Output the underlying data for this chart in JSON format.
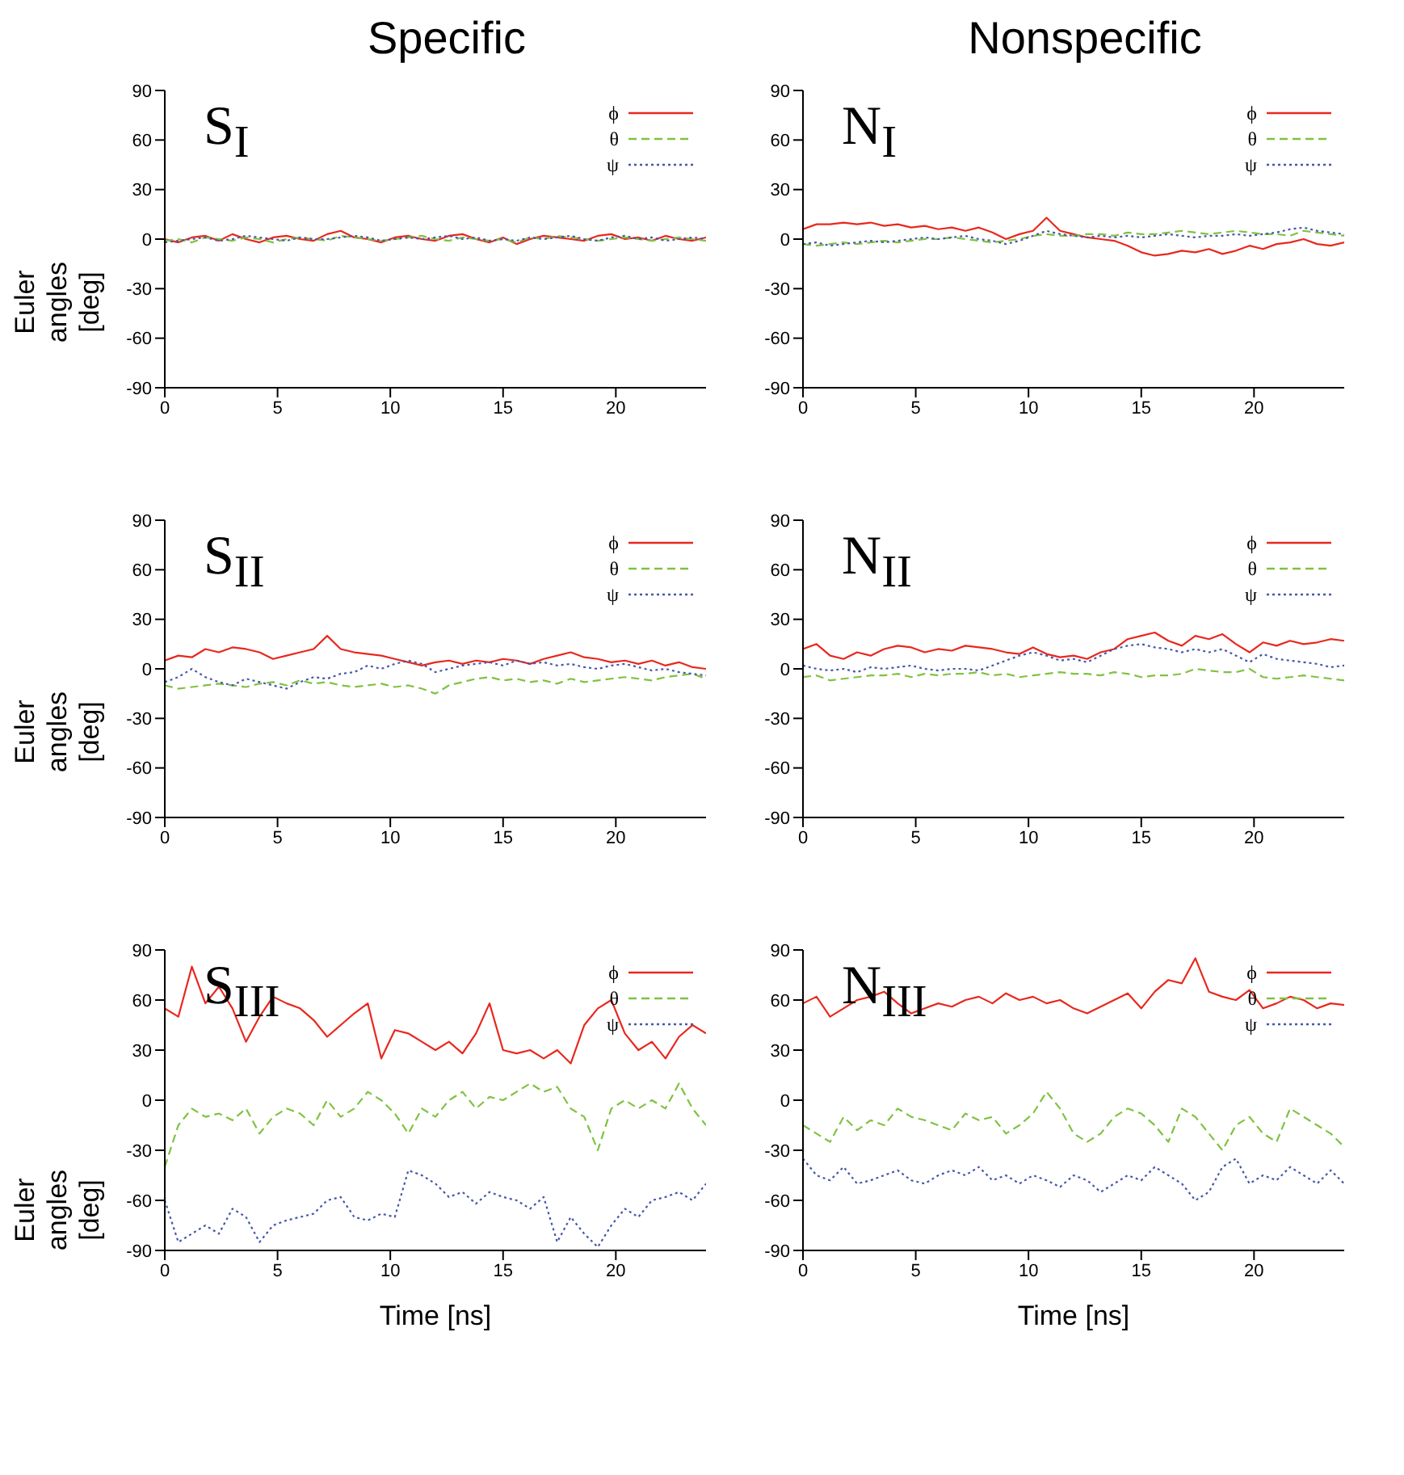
{
  "chart_data": [
    {
      "type": "line",
      "title": "Specific",
      "ylabel": "Euler angles [deg]",
      "annotations": [
        "S$_{I}$"
      ],
      "legend": "top right",
      "xlim": [
        0,
        24
      ],
      "xticks": [
        0,
        5,
        10,
        15,
        20
      ],
      "ylim": [
        -90,
        90
      ],
      "yticks": [
        -90,
        -60,
        -30,
        0,
        30,
        60,
        90
      ],
      "x": [
        0,
        0.6,
        1.2,
        1.8,
        2.4,
        3,
        3.6,
        4.2,
        4.8,
        5.4,
        6,
        6.6,
        7.2,
        7.8,
        8.4,
        9,
        9.6,
        10.2,
        10.8,
        11.4,
        12,
        12.6,
        13.2,
        13.8,
        14.4,
        15,
        15.6,
        16.2,
        16.8,
        17.4,
        18,
        18.6,
        19.2,
        19.8,
        20.4,
        21,
        21.6,
        22.2,
        22.8,
        23.4,
        24
      ],
      "series": [
        {
          "name": "ϕ",
          "color": "#e8281e",
          "line_style": "solid",
          "values": [
            0,
            -2,
            1,
            2,
            -1,
            3,
            0,
            -2,
            1,
            2,
            0,
            -1,
            3,
            5,
            1,
            0,
            -2,
            1,
            2,
            0,
            -1,
            2,
            3,
            0,
            -2,
            1,
            -3,
            0,
            2,
            1,
            0,
            -1,
            2,
            3,
            0,
            1,
            -1,
            2,
            0,
            -1,
            1
          ]
        },
        {
          "name": "θ",
          "color": "#7fc241",
          "line_style": "dashed",
          "values": [
            -1,
            0,
            -2,
            1,
            0,
            -1,
            1,
            0,
            -2,
            0,
            1,
            0,
            -1,
            2,
            1,
            0,
            -1,
            0,
            1,
            2,
            0,
            -1,
            1,
            0,
            -1,
            0,
            -2,
            1,
            0,
            2,
            1,
            0,
            -1,
            0,
            1,
            0,
            -1,
            0,
            1,
            0,
            -1
          ]
        },
        {
          "name": "ψ",
          "color": "#4658a8",
          "line_style": "dotted",
          "values": [
            -2,
            -1,
            0,
            1,
            -1,
            0,
            2,
            1,
            0,
            -1,
            1,
            0,
            0,
            1,
            2,
            1,
            -1,
            0,
            1,
            0,
            1,
            2,
            0,
            1,
            -1,
            0,
            -1,
            1,
            0,
            1,
            2,
            0,
            -1,
            1,
            2,
            0,
            1,
            -1,
            0,
            1,
            0
          ]
        }
      ]
    },
    {
      "type": "line",
      "title": "Nonspecific",
      "annotations": [
        "N$_{I}$"
      ],
      "legend": "top right",
      "xlim": [
        0,
        24
      ],
      "xticks": [
        0,
        5,
        10,
        15,
        20
      ],
      "ylim": [
        -90,
        90
      ],
      "yticks": [
        -90,
        -60,
        -30,
        0,
        30,
        60,
        90
      ],
      "x": [
        0,
        0.6,
        1.2,
        1.8,
        2.4,
        3,
        3.6,
        4.2,
        4.8,
        5.4,
        6,
        6.6,
        7.2,
        7.8,
        8.4,
        9,
        9.6,
        10.2,
        10.8,
        11.4,
        12,
        12.6,
        13.2,
        13.8,
        14.4,
        15,
        15.6,
        16.2,
        16.8,
        17.4,
        18,
        18.6,
        19.2,
        19.8,
        20.4,
        21,
        21.6,
        22.2,
        22.8,
        23.4,
        24
      ],
      "series": [
        {
          "name": "ϕ",
          "color": "#e8281e",
          "line_style": "solid",
          "values": [
            6,
            9,
            9,
            10,
            9,
            10,
            8,
            9,
            7,
            8,
            6,
            7,
            5,
            7,
            4,
            0,
            3,
            5,
            13,
            5,
            3,
            1,
            0,
            -1,
            -4,
            -8,
            -10,
            -9,
            -7,
            -8,
            -6,
            -9,
            -7,
            -4,
            -6,
            -3,
            -2,
            0,
            -3,
            -4,
            -2
          ]
        },
        {
          "name": "θ",
          "color": "#7fc241",
          "line_style": "dashed",
          "values": [
            -3,
            -4,
            -3,
            -2,
            -3,
            -2,
            -1,
            -2,
            -1,
            0,
            0,
            1,
            0,
            -1,
            -2,
            -1,
            0,
            2,
            3,
            2,
            2,
            3,
            3,
            2,
            4,
            3,
            3,
            4,
            5,
            4,
            3,
            4,
            5,
            4,
            3,
            3,
            2,
            5,
            4,
            3,
            2
          ]
        },
        {
          "name": "ψ",
          "color": "#4658a8",
          "line_style": "dotted",
          "values": [
            -3,
            -2,
            -4,
            -3,
            -2,
            -1,
            -2,
            -1,
            0,
            1,
            0,
            1,
            2,
            0,
            -1,
            -3,
            -1,
            2,
            5,
            3,
            2,
            1,
            2,
            1,
            2,
            1,
            2,
            3,
            2,
            1,
            2,
            2,
            3,
            2,
            3,
            4,
            6,
            7,
            5,
            4,
            3
          ]
        }
      ]
    },
    {
      "type": "line",
      "ylabel": "Euler angles [deg]",
      "annotations": [
        "S$_{II}$"
      ],
      "legend": "top right",
      "xlim": [
        0,
        24
      ],
      "xticks": [
        0,
        5,
        10,
        15,
        20
      ],
      "ylim": [
        -90,
        90
      ],
      "yticks": [
        -90,
        -60,
        -30,
        0,
        30,
        60,
        90
      ],
      "x": [
        0,
        0.6,
        1.2,
        1.8,
        2.4,
        3,
        3.6,
        4.2,
        4.8,
        5.4,
        6,
        6.6,
        7.2,
        7.8,
        8.4,
        9,
        9.6,
        10.2,
        10.8,
        11.4,
        12,
        12.6,
        13.2,
        13.8,
        14.4,
        15,
        15.6,
        16.2,
        16.8,
        17.4,
        18,
        18.6,
        19.2,
        19.8,
        20.4,
        21,
        21.6,
        22.2,
        22.8,
        23.4,
        24
      ],
      "series": [
        {
          "name": "ϕ",
          "color": "#e8281e",
          "line_style": "solid",
          "values": [
            5,
            8,
            7,
            12,
            10,
            13,
            12,
            10,
            6,
            8,
            10,
            12,
            20,
            12,
            10,
            9,
            8,
            6,
            4,
            2,
            4,
            5,
            3,
            5,
            4,
            6,
            5,
            3,
            6,
            8,
            10,
            7,
            6,
            4,
            5,
            3,
            5,
            2,
            4,
            1,
            0
          ]
        },
        {
          "name": "θ",
          "color": "#7fc241",
          "line_style": "dashed",
          "values": [
            -10,
            -12,
            -11,
            -10,
            -9,
            -10,
            -11,
            -9,
            -8,
            -10,
            -7,
            -9,
            -8,
            -10,
            -11,
            -10,
            -9,
            -11,
            -10,
            -12,
            -15,
            -10,
            -8,
            -6,
            -5,
            -7,
            -6,
            -8,
            -7,
            -9,
            -6,
            -8,
            -7,
            -6,
            -5,
            -6,
            -7,
            -5,
            -4,
            -3,
            -6
          ]
        },
        {
          "name": "ψ",
          "color": "#4658a8",
          "line_style": "dotted",
          "values": [
            -8,
            -5,
            0,
            -5,
            -8,
            -10,
            -6,
            -8,
            -10,
            -12,
            -8,
            -5,
            -6,
            -3,
            -2,
            2,
            0,
            3,
            5,
            3,
            -2,
            0,
            2,
            3,
            4,
            2,
            5,
            3,
            4,
            2,
            3,
            1,
            0,
            2,
            3,
            1,
            -1,
            0,
            -2,
            -3,
            -4
          ]
        }
      ]
    },
    {
      "type": "line",
      "annotations": [
        "N$_{II}$"
      ],
      "legend": "top right",
      "xlim": [
        0,
        24
      ],
      "xticks": [
        0,
        5,
        10,
        15,
        20
      ],
      "ylim": [
        -90,
        90
      ],
      "yticks": [
        -90,
        -60,
        -30,
        0,
        30,
        60,
        90
      ],
      "x": [
        0,
        0.6,
        1.2,
        1.8,
        2.4,
        3,
        3.6,
        4.2,
        4.8,
        5.4,
        6,
        6.6,
        7.2,
        7.8,
        8.4,
        9,
        9.6,
        10.2,
        10.8,
        11.4,
        12,
        12.6,
        13.2,
        13.8,
        14.4,
        15,
        15.6,
        16.2,
        16.8,
        17.4,
        18,
        18.6,
        19.2,
        19.8,
        20.4,
        21,
        21.6,
        22.2,
        22.8,
        23.4,
        24
      ],
      "series": [
        {
          "name": "ϕ",
          "color": "#e8281e",
          "line_style": "solid",
          "values": [
            12,
            15,
            8,
            6,
            10,
            8,
            12,
            14,
            13,
            10,
            12,
            11,
            14,
            13,
            12,
            10,
            9,
            13,
            9,
            7,
            8,
            6,
            10,
            12,
            18,
            20,
            22,
            17,
            14,
            20,
            18,
            21,
            15,
            10,
            16,
            14,
            17,
            15,
            16,
            18,
            17
          ]
        },
        {
          "name": "θ",
          "color": "#7fc241",
          "line_style": "dashed",
          "values": [
            -5,
            -4,
            -7,
            -6,
            -5,
            -4,
            -4,
            -3,
            -5,
            -3,
            -4,
            -3,
            -3,
            -2,
            -4,
            -3,
            -5,
            -4,
            -3,
            -2,
            -3,
            -3,
            -4,
            -2,
            -3,
            -5,
            -4,
            -4,
            -3,
            0,
            -1,
            -2,
            -2,
            0,
            -5,
            -6,
            -5,
            -4,
            -5,
            -6,
            -7
          ]
        },
        {
          "name": "ψ",
          "color": "#4658a8",
          "line_style": "dotted",
          "values": [
            2,
            0,
            -1,
            0,
            -2,
            1,
            0,
            1,
            2,
            0,
            -1,
            0,
            0,
            -1,
            2,
            5,
            8,
            10,
            8,
            5,
            6,
            4,
            8,
            12,
            14,
            15,
            13,
            12,
            10,
            12,
            10,
            12,
            8,
            4,
            9,
            6,
            5,
            4,
            3,
            1,
            2
          ]
        }
      ]
    },
    {
      "type": "line",
      "ylabel": "Euler angles [deg]",
      "xlabel": "Time [ns]",
      "annotations": [
        "S$_{III}$"
      ],
      "legend": "top right",
      "xlim": [
        0,
        24
      ],
      "xticks": [
        0,
        5,
        10,
        15,
        20
      ],
      "ylim": [
        -90,
        90
      ],
      "yticks": [
        -90,
        -60,
        -30,
        0,
        30,
        60,
        90
      ],
      "x": [
        0,
        0.6,
        1.2,
        1.8,
        2.4,
        3,
        3.6,
        4.2,
        4.8,
        5.4,
        6,
        6.6,
        7.2,
        7.8,
        8.4,
        9,
        9.6,
        10.2,
        10.8,
        11.4,
        12,
        12.6,
        13.2,
        13.8,
        14.4,
        15,
        15.6,
        16.2,
        16.8,
        17.4,
        18,
        18.6,
        19.2,
        19.8,
        20.4,
        21,
        21.6,
        22.2,
        22.8,
        23.4,
        24
      ],
      "series": [
        {
          "name": "ϕ",
          "color": "#e8281e",
          "line_style": "solid",
          "values": [
            55,
            50,
            80,
            58,
            68,
            55,
            35,
            50,
            62,
            58,
            55,
            48,
            38,
            45,
            52,
            58,
            25,
            42,
            40,
            35,
            30,
            35,
            28,
            40,
            58,
            30,
            28,
            30,
            25,
            30,
            22,
            45,
            55,
            60,
            40,
            30,
            35,
            25,
            38,
            45,
            40
          ]
        },
        {
          "name": "θ",
          "color": "#7fc241",
          "line_style": "dashed",
          "values": [
            -40,
            -15,
            -5,
            -10,
            -8,
            -12,
            -5,
            -20,
            -10,
            -5,
            -8,
            -15,
            0,
            -10,
            -5,
            5,
            0,
            -8,
            -20,
            -5,
            -10,
            0,
            5,
            -5,
            2,
            0,
            5,
            10,
            5,
            8,
            -5,
            -10,
            -30,
            -5,
            0,
            -5,
            0,
            -5,
            10,
            -5,
            -15
          ]
        },
        {
          "name": "ψ",
          "color": "#4658a8",
          "line_style": "dotted",
          "values": [
            -60,
            -85,
            -80,
            -75,
            -80,
            -65,
            -70,
            -85,
            -75,
            -72,
            -70,
            -68,
            -60,
            -58,
            -70,
            -72,
            -68,
            -70,
            -42,
            -45,
            -50,
            -58,
            -55,
            -62,
            -55,
            -58,
            -60,
            -65,
            -58,
            -85,
            -70,
            -80,
            -88,
            -75,
            -65,
            -70,
            -60,
            -58,
            -55,
            -60,
            -50
          ]
        }
      ]
    },
    {
      "type": "line",
      "xlabel": "Time [ns]",
      "annotations": [
        "N$_{III}$"
      ],
      "legend": "top right",
      "xlim": [
        0,
        24
      ],
      "xticks": [
        0,
        5,
        10,
        15,
        20
      ],
      "ylim": [
        -90,
        90
      ],
      "yticks": [
        -90,
        -60,
        -30,
        0,
        30,
        60,
        90
      ],
      "x": [
        0,
        0.6,
        1.2,
        1.8,
        2.4,
        3,
        3.6,
        4.2,
        4.8,
        5.4,
        6,
        6.6,
        7.2,
        7.8,
        8.4,
        9,
        9.6,
        10.2,
        10.8,
        11.4,
        12,
        12.6,
        13.2,
        13.8,
        14.4,
        15,
        15.6,
        16.2,
        16.8,
        17.4,
        18,
        18.6,
        19.2,
        19.8,
        20.4,
        21,
        21.6,
        22.2,
        22.8,
        23.4,
        24
      ],
      "series": [
        {
          "name": "ϕ",
          "color": "#e8281e",
          "line_style": "solid",
          "values": [
            58,
            62,
            50,
            55,
            60,
            62,
            65,
            58,
            52,
            55,
            58,
            56,
            60,
            62,
            58,
            64,
            60,
            62,
            58,
            60,
            55,
            52,
            56,
            60,
            64,
            55,
            65,
            72,
            70,
            85,
            65,
            62,
            60,
            66,
            55,
            58,
            62,
            60,
            55,
            58,
            57
          ]
        },
        {
          "name": "θ",
          "color": "#7fc241",
          "line_style": "dashed",
          "values": [
            -15,
            -20,
            -25,
            -10,
            -18,
            -12,
            -15,
            -5,
            -10,
            -12,
            -15,
            -18,
            -8,
            -12,
            -10,
            -20,
            -15,
            -8,
            5,
            -5,
            -20,
            -25,
            -20,
            -10,
            -5,
            -8,
            -15,
            -25,
            -5,
            -10,
            -20,
            -30,
            -15,
            -10,
            -20,
            -25,
            -5,
            -10,
            -15,
            -20,
            -28
          ]
        },
        {
          "name": "ψ",
          "color": "#4658a8",
          "line_style": "dotted",
          "values": [
            -35,
            -45,
            -48,
            -40,
            -50,
            -48,
            -45,
            -42,
            -48,
            -50,
            -45,
            -42,
            -45,
            -40,
            -48,
            -45,
            -50,
            -45,
            -48,
            -52,
            -45,
            -48,
            -55,
            -50,
            -45,
            -48,
            -40,
            -45,
            -50,
            -60,
            -55,
            -40,
            -35,
            -50,
            -45,
            -48,
            -40,
            -45,
            -50,
            -42,
            -50
          ]
        }
      ]
    }
  ]
}
